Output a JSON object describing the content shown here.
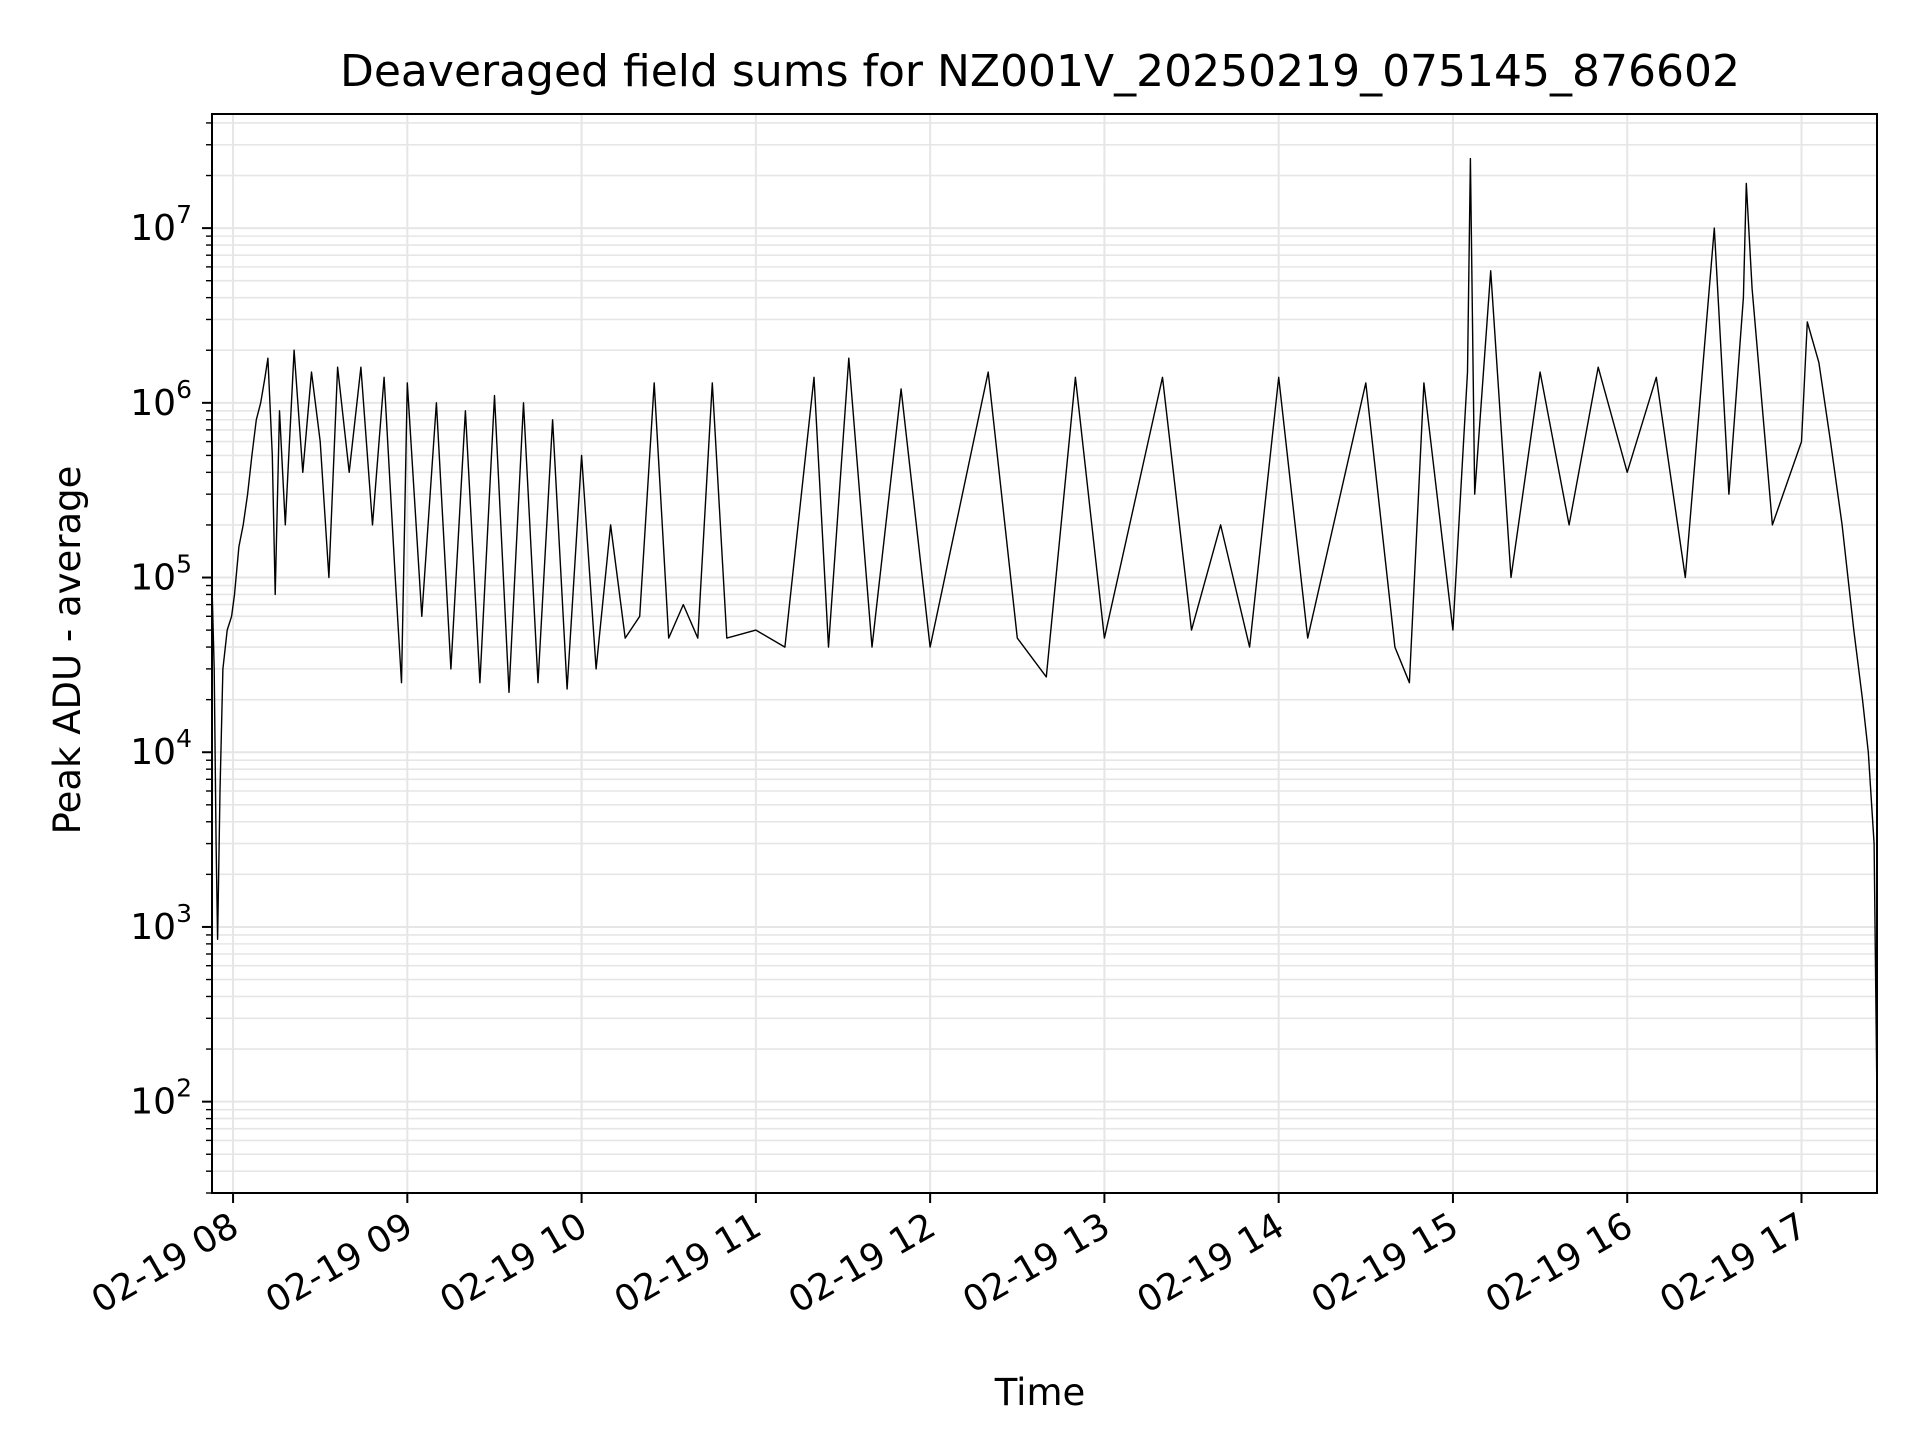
{
  "chart_data": {
    "type": "line",
    "title": "Deaveraged field sums for NZ001V_20250219_075145_876602",
    "xlabel": "Time",
    "ylabel": "Peak ADU - average",
    "yscale": "log",
    "ylim": [
      30,
      45000000
    ],
    "xlim": [
      "02-19 07:52:45",
      "02-19 17:26:00"
    ],
    "x_ticks": [
      {
        "value": "02-19 08:00",
        "label": "02-19 08"
      },
      {
        "value": "02-19 09:00",
        "label": "02-19 09"
      },
      {
        "value": "02-19 10:00",
        "label": "02-19 10"
      },
      {
        "value": "02-19 11:00",
        "label": "02-19 11"
      },
      {
        "value": "02-19 12:00",
        "label": "02-19 12"
      },
      {
        "value": "02-19 13:00",
        "label": "02-19 13"
      },
      {
        "value": "02-19 14:00",
        "label": "02-19 14"
      },
      {
        "value": "02-19 15:00",
        "label": "02-19 15"
      },
      {
        "value": "02-19 16:00",
        "label": "02-19 16"
      },
      {
        "value": "02-19 17:00",
        "label": "02-19 17"
      }
    ],
    "y_ticks": [
      {
        "value": 100,
        "base": "10",
        "exp": "2"
      },
      {
        "value": 1000,
        "base": "10",
        "exp": "3"
      },
      {
        "value": 10000,
        "base": "10",
        "exp": "4"
      },
      {
        "value": 100000,
        "base": "10",
        "exp": "5"
      },
      {
        "value": 1000000,
        "base": "10",
        "exp": "6"
      },
      {
        "value": 10000000,
        "base": "10",
        "exp": "7"
      }
    ],
    "grid": true,
    "line_color": "#000000",
    "grid_color": "#e6e6e6",
    "series": [
      {
        "name": "",
        "points": [
          [
            "02-19 07:52:45",
            90000
          ],
          [
            "02-19 07:53:30",
            30000
          ],
          [
            "02-19 07:54:10",
            3000
          ],
          [
            "02-19 07:54:40",
            850
          ],
          [
            "02-19 07:55:30",
            6000
          ],
          [
            "02-19 07:56:30",
            30000
          ],
          [
            "02-19 07:58:00",
            50000
          ],
          [
            "02-19 07:59:30",
            60000
          ],
          [
            "02-19 08:00:30",
            80000
          ],
          [
            "02-19 08:02:00",
            150000
          ],
          [
            "02-19 08:03:30",
            200000
          ],
          [
            "02-19 08:05:00",
            300000
          ],
          [
            "02-19 08:06:30",
            500000
          ],
          [
            "02-19 08:08:00",
            800000
          ],
          [
            "02-19 08:09:30",
            1000000
          ],
          [
            "02-19 08:11:00",
            1400000
          ],
          [
            "02-19 08:12:00",
            1800000
          ],
          [
            "02-19 08:13:30",
            500000
          ],
          [
            "02-19 08:14:30",
            80000
          ],
          [
            "02-19 08:16:00",
            900000
          ],
          [
            "02-19 08:18:00",
            200000
          ],
          [
            "02-19 08:21:00",
            2000000
          ],
          [
            "02-19 08:24:00",
            400000
          ],
          [
            "02-19 08:27:00",
            1500000
          ],
          [
            "02-19 08:30:00",
            600000
          ],
          [
            "02-19 08:33:00",
            100000
          ],
          [
            "02-19 08:36:00",
            1600000
          ],
          [
            "02-19 08:40:00",
            400000
          ],
          [
            "02-19 08:44:00",
            1600000
          ],
          [
            "02-19 08:48:00",
            200000
          ],
          [
            "02-19 08:52:00",
            1400000
          ],
          [
            "02-19 08:56:00",
            90000
          ],
          [
            "02-19 08:58:00",
            25000
          ],
          [
            "02-19 09:00:00",
            1300000
          ],
          [
            "02-19 09:05:00",
            60000
          ],
          [
            "02-19 09:10:00",
            1000000
          ],
          [
            "02-19 09:15:00",
            30000
          ],
          [
            "02-19 09:20:00",
            900000
          ],
          [
            "02-19 09:25:00",
            25000
          ],
          [
            "02-19 09:30:00",
            1100000
          ],
          [
            "02-19 09:35:00",
            22000
          ],
          [
            "02-19 09:40:00",
            1000000
          ],
          [
            "02-19 09:45:00",
            25000
          ],
          [
            "02-19 09:50:00",
            800000
          ],
          [
            "02-19 09:55:00",
            23000
          ],
          [
            "02-19 10:00:00",
            500000
          ],
          [
            "02-19 10:05:00",
            30000
          ],
          [
            "02-19 10:10:00",
            200000
          ],
          [
            "02-19 10:15:00",
            45000
          ],
          [
            "02-19 10:20:00",
            60000
          ],
          [
            "02-19 10:25:00",
            1300000
          ],
          [
            "02-19 10:30:00",
            45000
          ],
          [
            "02-19 10:35:00",
            70000
          ],
          [
            "02-19 10:40:00",
            45000
          ],
          [
            "02-19 10:45:00",
            1300000
          ],
          [
            "02-19 10:50:00",
            45000
          ],
          [
            "02-19 11:00:00",
            50000
          ],
          [
            "02-19 11:10:00",
            40000
          ],
          [
            "02-19 11:20:00",
            1400000
          ],
          [
            "02-19 11:25:00",
            40000
          ],
          [
            "02-19 11:32:00",
            1800000
          ],
          [
            "02-19 11:40:00",
            40000
          ],
          [
            "02-19 11:50:00",
            1200000
          ],
          [
            "02-19 12:00:00",
            40000
          ],
          [
            "02-19 12:20:00",
            1500000
          ],
          [
            "02-19 12:30:00",
            45000
          ],
          [
            "02-19 12:40:00",
            27000
          ],
          [
            "02-19 12:50:00",
            1400000
          ],
          [
            "02-19 13:00:00",
            45000
          ],
          [
            "02-19 13:20:00",
            1400000
          ],
          [
            "02-19 13:30:00",
            50000
          ],
          [
            "02-19 13:40:00",
            200000
          ],
          [
            "02-19 13:50:00",
            40000
          ],
          [
            "02-19 14:00:00",
            1400000
          ],
          [
            "02-19 14:10:00",
            45000
          ],
          [
            "02-19 14:30:00",
            1300000
          ],
          [
            "02-19 14:40:00",
            40000
          ],
          [
            "02-19 14:45:00",
            25000
          ],
          [
            "02-19 14:50:00",
            1300000
          ],
          [
            "02-19 15:00:00",
            50000
          ],
          [
            "02-19 15:05:00",
            1500000
          ],
          [
            "02-19 15:06:00",
            25000000
          ],
          [
            "02-19 15:07:30",
            300000
          ],
          [
            "02-19 15:13:00",
            5700000
          ],
          [
            "02-19 15:20:00",
            100000
          ],
          [
            "02-19 15:30:00",
            1500000
          ],
          [
            "02-19 15:40:00",
            200000
          ],
          [
            "02-19 15:50:00",
            1600000
          ],
          [
            "02-19 16:00:00",
            400000
          ],
          [
            "02-19 16:10:00",
            1400000
          ],
          [
            "02-19 16:20:00",
            100000
          ],
          [
            "02-19 16:30:00",
            10000000
          ],
          [
            "02-19 16:35:00",
            300000
          ],
          [
            "02-19 16:40:00",
            4000000
          ],
          [
            "02-19 16:41:00",
            18000000
          ],
          [
            "02-19 16:43:00",
            4500000
          ],
          [
            "02-19 16:50:00",
            200000
          ],
          [
            "02-19 17:00:00",
            600000
          ],
          [
            "02-19 17:02:00",
            2900000
          ],
          [
            "02-19 17:06:00",
            1700000
          ],
          [
            "02-19 17:10:00",
            600000
          ],
          [
            "02-19 17:14:00",
            200000
          ],
          [
            "02-19 17:18:00",
            50000
          ],
          [
            "02-19 17:21:00",
            20000
          ],
          [
            "02-19 17:23:00",
            10000
          ],
          [
            "02-19 17:25:00",
            3000
          ],
          [
            "02-19 17:26:00",
            100
          ]
        ]
      }
    ]
  }
}
